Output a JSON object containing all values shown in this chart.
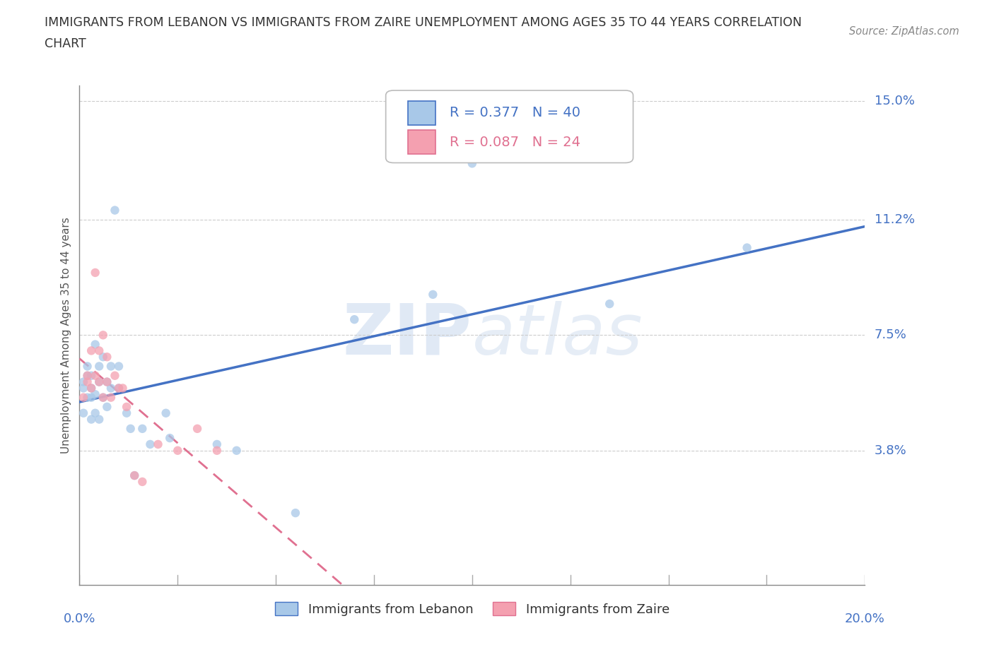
{
  "title_line1": "IMMIGRANTS FROM LEBANON VS IMMIGRANTS FROM ZAIRE UNEMPLOYMENT AMONG AGES 35 TO 44 YEARS CORRELATION",
  "title_line2": "CHART",
  "source_text": "Source: ZipAtlas.com",
  "ylabel": "Unemployment Among Ages 35 to 44 years",
  "xlim": [
    0.0,
    0.2
  ],
  "ylim": [
    -0.005,
    0.155
  ],
  "yticks": [
    0.038,
    0.075,
    0.112,
    0.15
  ],
  "ytick_labels": [
    "3.8%",
    "7.5%",
    "11.2%",
    "15.0%"
  ],
  "xtick_labels": [
    "0.0%",
    "20.0%"
  ],
  "xticks": [
    0.0,
    0.2
  ],
  "watermark": "ZIPatlas",
  "legend_R1": "R = 0.377",
  "legend_N1": "N = 40",
  "legend_R2": "R = 0.087",
  "legend_N2": "N = 24",
  "color_lebanon": "#a8c8e8",
  "color_zaire": "#f4a0b0",
  "color_lebanon_line": "#4472c4",
  "color_zaire_line": "#e07090",
  "color_axis_labels": "#4472c4",
  "lebanon_x": [
    0.001,
    0.001,
    0.001,
    0.002,
    0.002,
    0.002,
    0.003,
    0.003,
    0.003,
    0.003,
    0.004,
    0.004,
    0.004,
    0.005,
    0.005,
    0.005,
    0.006,
    0.006,
    0.007,
    0.007,
    0.008,
    0.008,
    0.009,
    0.01,
    0.01,
    0.012,
    0.013,
    0.014,
    0.016,
    0.018,
    0.022,
    0.023,
    0.035,
    0.04,
    0.055,
    0.07,
    0.09,
    0.1,
    0.135,
    0.17
  ],
  "lebanon_y": [
    0.05,
    0.058,
    0.06,
    0.055,
    0.062,
    0.065,
    0.048,
    0.055,
    0.058,
    0.062,
    0.05,
    0.056,
    0.072,
    0.048,
    0.06,
    0.065,
    0.055,
    0.068,
    0.052,
    0.06,
    0.058,
    0.065,
    0.115,
    0.058,
    0.065,
    0.05,
    0.045,
    0.03,
    0.045,
    0.04,
    0.05,
    0.042,
    0.04,
    0.038,
    0.018,
    0.08,
    0.088,
    0.13,
    0.085,
    0.103
  ],
  "zaire_x": [
    0.001,
    0.002,
    0.002,
    0.003,
    0.003,
    0.004,
    0.004,
    0.005,
    0.005,
    0.006,
    0.006,
    0.007,
    0.007,
    0.008,
    0.009,
    0.01,
    0.011,
    0.012,
    0.014,
    0.016,
    0.02,
    0.025,
    0.03,
    0.035
  ],
  "zaire_y": [
    0.055,
    0.06,
    0.062,
    0.058,
    0.07,
    0.062,
    0.095,
    0.06,
    0.07,
    0.055,
    0.075,
    0.06,
    0.068,
    0.055,
    0.062,
    0.058,
    0.058,
    0.052,
    0.03,
    0.028,
    0.04,
    0.038,
    0.045,
    0.038
  ]
}
